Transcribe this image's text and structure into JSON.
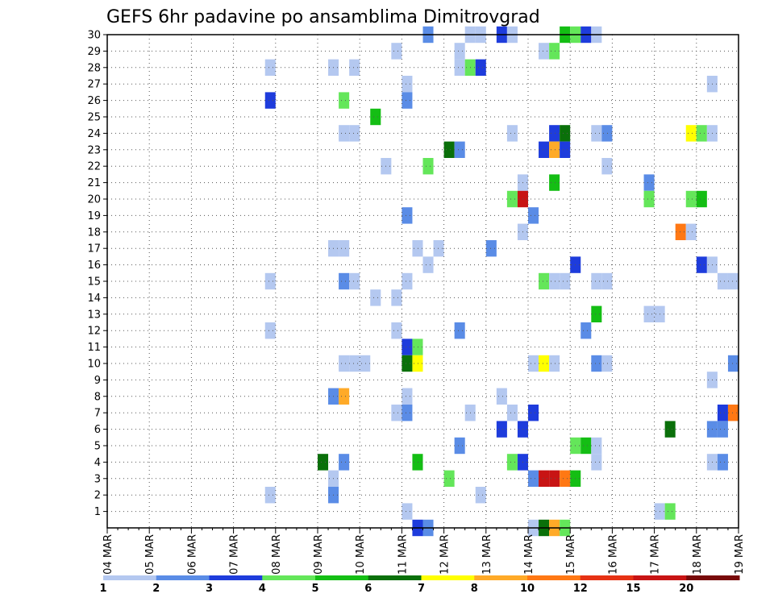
{
  "chart_data": {
    "type": "heatmap",
    "title": "GEFS 6hr padavine po ansamblima Dimitrovgrad",
    "xlabel": "",
    "ylabel": "",
    "x_tick_labels": [
      "04 MAR",
      "05 MAR",
      "06 MAR",
      "07 MAR",
      "08 MAR",
      "09 MAR",
      "10 MAR",
      "11 MAR",
      "12 MAR",
      "13 MAR",
      "14 MAR",
      "15 MAR",
      "16 MAR",
      "17 MAR",
      "18 MAR",
      "19 MAR"
    ],
    "x_step_hours": 6,
    "y_tick_labels": [
      "1",
      "2",
      "3",
      "4",
      "5",
      "6",
      "7",
      "8",
      "9",
      "10",
      "11",
      "12",
      "13",
      "14",
      "15",
      "16",
      "17",
      "18",
      "19",
      "20",
      "21",
      "22",
      "23",
      "24",
      "25",
      "26",
      "27",
      "28",
      "29",
      "30"
    ],
    "ylim": [
      0,
      30
    ],
    "grid": true,
    "colorbar": {
      "labels": [
        "1",
        "2",
        "3",
        "4",
        "5",
        "6",
        "7",
        "8",
        "10",
        "12",
        "15",
        "20"
      ],
      "colors": [
        "#b4c8f0",
        "#5a8ce6",
        "#1e3cdc",
        "#64e65a",
        "#14be14",
        "#0a700a",
        "#ffff00",
        "#ffaa28",
        "#ff7814",
        "#e63214",
        "#c81414",
        "#780a0a"
      ]
    },
    "cells": [
      {
        "day": "07 MAR",
        "h": 18,
        "m": 28,
        "c": 1
      },
      {
        "day": "07 MAR",
        "h": 18,
        "m": 26,
        "c": 3
      },
      {
        "day": "07 MAR",
        "h": 18,
        "m": 15,
        "c": 1
      },
      {
        "day": "07 MAR",
        "h": 18,
        "m": 12,
        "c": 1
      },
      {
        "day": "07 MAR",
        "h": 18,
        "m": 2,
        "c": 1
      },
      {
        "day": "09 MAR",
        "h": 0,
        "m": 4,
        "c": 6
      },
      {
        "day": "09 MAR",
        "h": 6,
        "m": 28,
        "c": 1
      },
      {
        "day": "09 MAR",
        "h": 6,
        "m": 17,
        "c": 1
      },
      {
        "day": "09 MAR",
        "h": 6,
        "m": 8,
        "c": 2
      },
      {
        "day": "09 MAR",
        "h": 6,
        "m": 3,
        "c": 1
      },
      {
        "day": "09 MAR",
        "h": 6,
        "m": 2,
        "c": 2
      },
      {
        "day": "09 MAR",
        "h": 12,
        "m": 26,
        "c": 4
      },
      {
        "day": "09 MAR",
        "h": 12,
        "m": 24,
        "c": 1
      },
      {
        "day": "09 MAR",
        "h": 12,
        "m": 17,
        "c": 1
      },
      {
        "day": "09 MAR",
        "h": 12,
        "m": 15,
        "c": 2
      },
      {
        "day": "09 MAR",
        "h": 12,
        "m": 10,
        "c": 1
      },
      {
        "day": "09 MAR",
        "h": 12,
        "m": 8,
        "c": 8
      },
      {
        "day": "09 MAR",
        "h": 12,
        "m": 4,
        "c": 2
      },
      {
        "day": "09 MAR",
        "h": 18,
        "m": 28,
        "c": 1
      },
      {
        "day": "09 MAR",
        "h": 18,
        "m": 24,
        "c": 1
      },
      {
        "day": "09 MAR",
        "h": 18,
        "m": 15,
        "c": 1
      },
      {
        "day": "09 MAR",
        "h": 18,
        "m": 10,
        "c": 1
      },
      {
        "day": "10 MAR",
        "h": 0,
        "m": 10,
        "c": 1
      },
      {
        "day": "10 MAR",
        "h": 6,
        "m": 25,
        "c": 5
      },
      {
        "day": "10 MAR",
        "h": 6,
        "m": 14,
        "c": 1
      },
      {
        "day": "10 MAR",
        "h": 12,
        "m": 22,
        "c": 1
      },
      {
        "day": "10 MAR",
        "h": 18,
        "m": 29,
        "c": 1
      },
      {
        "day": "10 MAR",
        "h": 18,
        "m": 14,
        "c": 1
      },
      {
        "day": "10 MAR",
        "h": 18,
        "m": 12,
        "c": 1
      },
      {
        "day": "10 MAR",
        "h": 18,
        "m": 7,
        "c": 1
      },
      {
        "day": "11 MAR",
        "h": 0,
        "m": 27,
        "c": 1
      },
      {
        "day": "11 MAR",
        "h": 0,
        "m": 26,
        "c": 2
      },
      {
        "day": "11 MAR",
        "h": 0,
        "m": 19,
        "c": 2
      },
      {
        "day": "11 MAR",
        "h": 0,
        "m": 15,
        "c": 1
      },
      {
        "day": "11 MAR",
        "h": 0,
        "m": 11,
        "c": 3
      },
      {
        "day": "11 MAR",
        "h": 0,
        "m": 10,
        "c": 6
      },
      {
        "day": "11 MAR",
        "h": 0,
        "m": 8,
        "c": 1
      },
      {
        "day": "11 MAR",
        "h": 0,
        "m": 7,
        "c": 2
      },
      {
        "day": "11 MAR",
        "h": 0,
        "m": 1,
        "c": 1
      },
      {
        "day": "11 MAR",
        "h": 6,
        "m": 17,
        "c": 1
      },
      {
        "day": "11 MAR",
        "h": 6,
        "m": 11,
        "c": 4
      },
      {
        "day": "11 MAR",
        "h": 6,
        "m": 10,
        "c": 7
      },
      {
        "day": "11 MAR",
        "h": 6,
        "m": 4,
        "c": 5
      },
      {
        "day": "11 MAR",
        "h": 6,
        "m": 0,
        "c": 3
      },
      {
        "day": "11 MAR",
        "h": 12,
        "m": 30,
        "c": 2
      },
      {
        "day": "11 MAR",
        "h": 12,
        "m": 22,
        "c": 4
      },
      {
        "day": "11 MAR",
        "h": 12,
        "m": 16,
        "c": 1
      },
      {
        "day": "11 MAR",
        "h": 12,
        "m": 0,
        "c": 2
      },
      {
        "day": "11 MAR",
        "h": 18,
        "m": 17,
        "c": 1
      },
      {
        "day": "12 MAR",
        "h": 0,
        "m": 23,
        "c": 6
      },
      {
        "day": "12 MAR",
        "h": 0,
        "m": 3,
        "c": 4
      },
      {
        "day": "12 MAR",
        "h": 6,
        "m": 29,
        "c": 1
      },
      {
        "day": "12 MAR",
        "h": 6,
        "m": 28,
        "c": 1
      },
      {
        "day": "12 MAR",
        "h": 6,
        "m": 23,
        "c": 2
      },
      {
        "day": "12 MAR",
        "h": 6,
        "m": 12,
        "c": 2
      },
      {
        "day": "12 MAR",
        "h": 6,
        "m": 5,
        "c": 2
      },
      {
        "day": "12 MAR",
        "h": 12,
        "m": 30,
        "c": 1
      },
      {
        "day": "12 MAR",
        "h": 12,
        "m": 28,
        "c": 4
      },
      {
        "day": "12 MAR",
        "h": 12,
        "m": 7,
        "c": 1
      },
      {
        "day": "12 MAR",
        "h": 18,
        "m": 30,
        "c": 1
      },
      {
        "day": "12 MAR",
        "h": 18,
        "m": 28,
        "c": 3
      },
      {
        "day": "12 MAR",
        "h": 18,
        "m": 2,
        "c": 1
      },
      {
        "day": "13 MAR",
        "h": 0,
        "m": 17,
        "c": 2
      },
      {
        "day": "13 MAR",
        "h": 6,
        "m": 30,
        "c": 3
      },
      {
        "day": "13 MAR",
        "h": 6,
        "m": 8,
        "c": 1
      },
      {
        "day": "13 MAR",
        "h": 6,
        "m": 6,
        "c": 3
      },
      {
        "day": "13 MAR",
        "h": 12,
        "m": 30,
        "c": 1
      },
      {
        "day": "13 MAR",
        "h": 12,
        "m": 24,
        "c": 1
      },
      {
        "day": "13 MAR",
        "h": 12,
        "m": 20,
        "c": 4
      },
      {
        "day": "13 MAR",
        "h": 12,
        "m": 7,
        "c": 1
      },
      {
        "day": "13 MAR",
        "h": 12,
        "m": 4,
        "c": 4
      },
      {
        "day": "13 MAR",
        "h": 18,
        "m": 21,
        "c": 1
      },
      {
        "day": "13 MAR",
        "h": 18,
        "m": 20,
        "c": 11
      },
      {
        "day": "13 MAR",
        "h": 18,
        "m": 18,
        "c": 1
      },
      {
        "day": "13 MAR",
        "h": 18,
        "m": 6,
        "c": 3
      },
      {
        "day": "13 MAR",
        "h": 18,
        "m": 4,
        "c": 3
      },
      {
        "day": "14 MAR",
        "h": 0,
        "m": 19,
        "c": 2
      },
      {
        "day": "14 MAR",
        "h": 0,
        "m": 10,
        "c": 1
      },
      {
        "day": "14 MAR",
        "h": 0,
        "m": 7,
        "c": 3
      },
      {
        "day": "14 MAR",
        "h": 0,
        "m": 3,
        "c": 2
      },
      {
        "day": "14 MAR",
        "h": 0,
        "m": 0,
        "c": 1
      },
      {
        "day": "14 MAR",
        "h": 6,
        "m": 29,
        "c": 1
      },
      {
        "day": "14 MAR",
        "h": 6,
        "m": 23,
        "c": 3
      },
      {
        "day": "14 MAR",
        "h": 6,
        "m": 15,
        "c": 4
      },
      {
        "day": "14 MAR",
        "h": 6,
        "m": 10,
        "c": 7
      },
      {
        "day": "14 MAR",
        "h": 6,
        "m": 3,
        "c": 11
      },
      {
        "day": "14 MAR",
        "h": 6,
        "m": 0,
        "c": 6
      },
      {
        "day": "14 MAR",
        "h": 12,
        "m": 29,
        "c": 4
      },
      {
        "day": "14 MAR",
        "h": 12,
        "m": 24,
        "c": 3
      },
      {
        "day": "14 MAR",
        "h": 12,
        "m": 23,
        "c": 8
      },
      {
        "day": "14 MAR",
        "h": 12,
        "m": 21,
        "c": 5
      },
      {
        "day": "14 MAR",
        "h": 12,
        "m": 15,
        "c": 1
      },
      {
        "day": "14 MAR",
        "h": 12,
        "m": 10,
        "c": 1
      },
      {
        "day": "14 MAR",
        "h": 12,
        "m": 3,
        "c": 11
      },
      {
        "day": "14 MAR",
        "h": 12,
        "m": 0,
        "c": 8
      },
      {
        "day": "14 MAR",
        "h": 18,
        "m": 30,
        "c": 5
      },
      {
        "day": "14 MAR",
        "h": 18,
        "m": 24,
        "c": 6
      },
      {
        "day": "14 MAR",
        "h": 18,
        "m": 23,
        "c": 3
      },
      {
        "day": "14 MAR",
        "h": 18,
        "m": 15,
        "c": 1
      },
      {
        "day": "14 MAR",
        "h": 18,
        "m": 3,
        "c": 9
      },
      {
        "day": "14 MAR",
        "h": 18,
        "m": 0,
        "c": 4
      },
      {
        "day": "15 MAR",
        "h": 0,
        "m": 30,
        "c": 4
      },
      {
        "day": "15 MAR",
        "h": 0,
        "m": 16,
        "c": 3
      },
      {
        "day": "15 MAR",
        "h": 0,
        "m": 5,
        "c": 4
      },
      {
        "day": "15 MAR",
        "h": 0,
        "m": 3,
        "c": 5
      },
      {
        "day": "15 MAR",
        "h": 6,
        "m": 30,
        "c": 3
      },
      {
        "day": "15 MAR",
        "h": 6,
        "m": 12,
        "c": 2
      },
      {
        "day": "15 MAR",
        "h": 6,
        "m": 5,
        "c": 5
      },
      {
        "day": "15 MAR",
        "h": 12,
        "m": 30,
        "c": 1
      },
      {
        "day": "15 MAR",
        "h": 12,
        "m": 24,
        "c": 1
      },
      {
        "day": "15 MAR",
        "h": 12,
        "m": 15,
        "c": 1
      },
      {
        "day": "15 MAR",
        "h": 12,
        "m": 13,
        "c": 5
      },
      {
        "day": "15 MAR",
        "h": 12,
        "m": 10,
        "c": 2
      },
      {
        "day": "15 MAR",
        "h": 12,
        "m": 5,
        "c": 1
      },
      {
        "day": "15 MAR",
        "h": 12,
        "m": 4,
        "c": 1
      },
      {
        "day": "15 MAR",
        "h": 18,
        "m": 24,
        "c": 2
      },
      {
        "day": "15 MAR",
        "h": 18,
        "m": 22,
        "c": 1
      },
      {
        "day": "15 MAR",
        "h": 18,
        "m": 15,
        "c": 1
      },
      {
        "day": "15 MAR",
        "h": 18,
        "m": 10,
        "c": 1
      },
      {
        "day": "16 MAR",
        "h": 18,
        "m": 21,
        "c": 2
      },
      {
        "day": "16 MAR",
        "h": 18,
        "m": 20,
        "c": 4
      },
      {
        "day": "16 MAR",
        "h": 18,
        "m": 13,
        "c": 1
      },
      {
        "day": "17 MAR",
        "h": 0,
        "m": 13,
        "c": 1
      },
      {
        "day": "17 MAR",
        "h": 0,
        "m": 1,
        "c": 1
      },
      {
        "day": "17 MAR",
        "h": 6,
        "m": 6,
        "c": 6
      },
      {
        "day": "17 MAR",
        "h": 6,
        "m": 1,
        "c": 4
      },
      {
        "day": "17 MAR",
        "h": 12,
        "m": 18,
        "c": 9
      },
      {
        "day": "17 MAR",
        "h": 18,
        "m": 24,
        "c": 7
      },
      {
        "day": "17 MAR",
        "h": 18,
        "m": 20,
        "c": 4
      },
      {
        "day": "17 MAR",
        "h": 18,
        "m": 18,
        "c": 1
      },
      {
        "day": "18 MAR",
        "h": 0,
        "m": 24,
        "c": 4
      },
      {
        "day": "18 MAR",
        "h": 0,
        "m": 20,
        "c": 5
      },
      {
        "day": "18 MAR",
        "h": 0,
        "m": 16,
        "c": 3
      },
      {
        "day": "18 MAR",
        "h": 6,
        "m": 27,
        "c": 1
      },
      {
        "day": "18 MAR",
        "h": 6,
        "m": 24,
        "c": 1
      },
      {
        "day": "18 MAR",
        "h": 6,
        "m": 16,
        "c": 1
      },
      {
        "day": "18 MAR",
        "h": 6,
        "m": 9,
        "c": 1
      },
      {
        "day": "18 MAR",
        "h": 6,
        "m": 6,
        "c": 2
      },
      {
        "day": "18 MAR",
        "h": 6,
        "m": 4,
        "c": 1
      },
      {
        "day": "18 MAR",
        "h": 12,
        "m": 15,
        "c": 1
      },
      {
        "day": "18 MAR",
        "h": 12,
        "m": 7,
        "c": 3
      },
      {
        "day": "18 MAR",
        "h": 12,
        "m": 6,
        "c": 2
      },
      {
        "day": "18 MAR",
        "h": 12,
        "m": 4,
        "c": 2
      },
      {
        "day": "18 MAR",
        "h": 18,
        "m": 15,
        "c": 1
      },
      {
        "day": "18 MAR",
        "h": 18,
        "m": 10,
        "c": 2
      },
      {
        "day": "18 MAR",
        "h": 18,
        "m": 7,
        "c": 9
      }
    ]
  }
}
